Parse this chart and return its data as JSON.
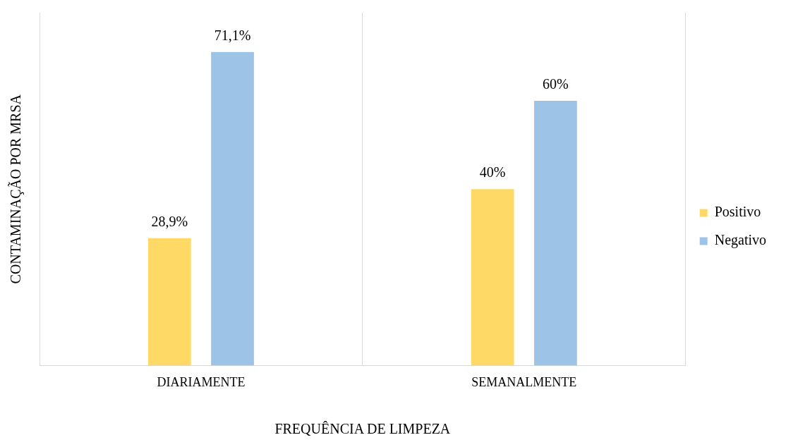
{
  "chart_data": {
    "type": "bar",
    "xlabel": "FREQUÊNCIA DE LIMPEZA",
    "ylabel": "CONTAMINAÇÃO POR MRSA",
    "categories": [
      "DIARIAMENTE",
      "SEMANALMENTE"
    ],
    "series": [
      {
        "name": "Positivo",
        "color": "#ffd966",
        "values": [
          28.9,
          40
        ],
        "value_labels": [
          "28,9%",
          "40%"
        ]
      },
      {
        "name": "Negativo",
        "color": "#9dc3e6",
        "values": [
          71.1,
          60
        ],
        "value_labels": [
          "71,1%",
          "60%"
        ]
      }
    ],
    "ylim": [
      0,
      80
    ],
    "tick_labels": "x",
    "grid": "x",
    "legend": "right"
  }
}
